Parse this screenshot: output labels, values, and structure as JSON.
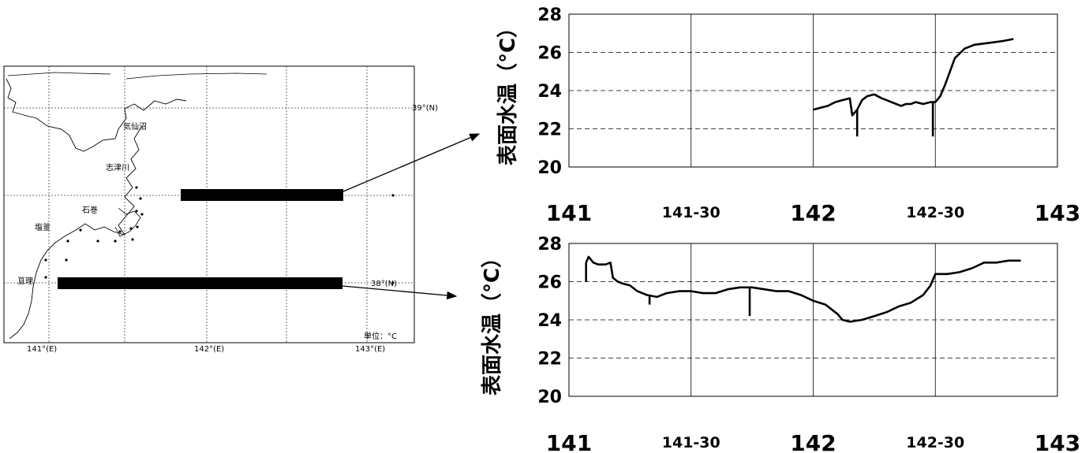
{
  "map": {
    "lat_labels": [
      "39°(N)",
      "38°(N)"
    ],
    "lon_labels": [
      "141°(E)",
      "142°(E)",
      "143°(E)"
    ],
    "places": [
      "気仙沼",
      "志津川",
      "石巻",
      "塩釜",
      "亘理"
    ],
    "unit": "単位：°C",
    "transects": [
      {
        "from_lon": 141.85,
        "to_lon": 142.77,
        "lat": 38.5
      },
      {
        "from_lon": 141.07,
        "to_lon": 142.77,
        "lat": 38.0
      }
    ]
  },
  "chart_data": [
    {
      "type": "line",
      "title": "",
      "ylabel": "表面水温（°C）",
      "xlabel": "",
      "xlim": [
        141,
        143
      ],
      "ylim": [
        20,
        28
      ],
      "yticks": [
        "20",
        "22",
        "24",
        "26",
        "28"
      ],
      "xticks": [
        "141",
        "141-30",
        "142",
        "142-30",
        "143"
      ],
      "grid": true,
      "series": [
        {
          "x": [
            142.0,
            142.03,
            142.06,
            142.09,
            142.12,
            142.15,
            142.16,
            142.18,
            142.2,
            142.22,
            142.25,
            142.28,
            142.3,
            142.32,
            142.34,
            142.36,
            142.38,
            142.4,
            142.42,
            142.45,
            142.48,
            142.5,
            142.52,
            142.54,
            142.56,
            142.58,
            142.62,
            142.66,
            142.72,
            142.78,
            142.82
          ],
          "y": [
            23.0,
            23.1,
            23.2,
            23.4,
            23.5,
            23.6,
            22.7,
            23.0,
            23.5,
            23.7,
            23.8,
            23.6,
            23.5,
            23.4,
            23.3,
            23.2,
            23.3,
            23.3,
            23.4,
            23.3,
            23.4,
            23.4,
            23.7,
            24.3,
            25.0,
            25.7,
            26.2,
            26.4,
            26.5,
            26.6,
            26.7
          ]
        }
      ],
      "spikes": [
        {
          "x": 142.18,
          "y": 21.6
        },
        {
          "x": 142.49,
          "y": 21.6
        }
      ]
    },
    {
      "type": "line",
      "title": "",
      "ylabel": "表面水温（°C）",
      "xlabel": "",
      "xlim": [
        141,
        143
      ],
      "ylim": [
        20,
        28
      ],
      "yticks": [
        "20",
        "22",
        "24",
        "26",
        "28"
      ],
      "xticks": [
        "141",
        "141-30",
        "142",
        "142-30",
        "143"
      ],
      "grid": true,
      "series": [
        {
          "x": [
            141.07,
            141.08,
            141.1,
            141.12,
            141.15,
            141.17,
            141.18,
            141.2,
            141.22,
            141.25,
            141.28,
            141.32,
            141.36,
            141.4,
            141.45,
            141.5,
            141.55,
            141.6,
            141.65,
            141.7,
            141.75,
            141.8,
            141.85,
            141.9,
            141.95,
            142.0,
            142.05,
            142.1,
            142.12,
            142.15,
            142.2,
            142.25,
            142.3,
            142.35,
            142.4,
            142.45,
            142.48,
            142.5,
            142.55,
            142.6,
            142.65,
            142.7,
            142.75,
            142.8,
            142.85
          ],
          "y": [
            27.0,
            27.3,
            27.0,
            26.9,
            26.9,
            27.0,
            26.2,
            26.0,
            25.9,
            25.8,
            25.5,
            25.3,
            25.2,
            25.4,
            25.5,
            25.5,
            25.4,
            25.4,
            25.6,
            25.7,
            25.7,
            25.6,
            25.5,
            25.5,
            25.3,
            25.0,
            24.8,
            24.3,
            24.0,
            23.9,
            24.0,
            24.2,
            24.4,
            24.7,
            24.9,
            25.3,
            25.8,
            26.4,
            26.4,
            26.5,
            26.7,
            27.0,
            27.0,
            27.1,
            27.1
          ]
        }
      ],
      "spikes": [
        {
          "x": 141.07,
          "y": 26.0
        },
        {
          "x": 141.33,
          "y": 24.8
        },
        {
          "x": 141.74,
          "y": 24.2
        }
      ]
    }
  ]
}
